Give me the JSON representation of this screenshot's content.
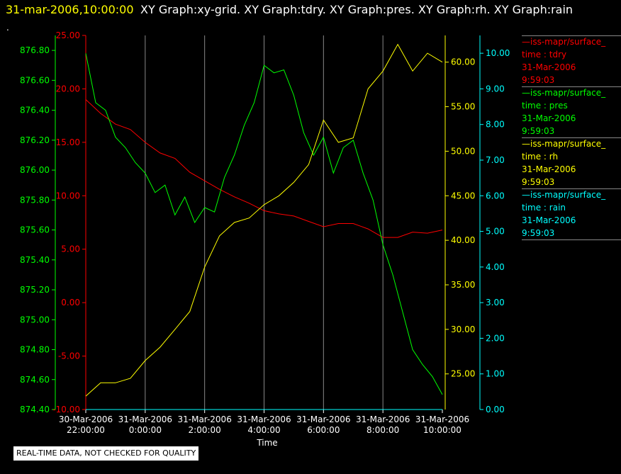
{
  "header": {
    "timestamp": "31-mar-2006,10:00:00",
    "graphs_title": "XY Graph:xy-grid.  XY Graph:tdry.  XY Graph:pres.  XY Graph:rh.  XY Graph:rain",
    "dot": "."
  },
  "disclaimer": "REAL-TIME DATA, NOT CHECKED FOR QUALITY",
  "colors": {
    "tdry": "#ff0000",
    "pres": "#00ff00",
    "rh": "#ffff00",
    "rain": "#00ffff",
    "grid": "#888888"
  },
  "legend": [
    {
      "name": "iss-mapr/surface_",
      "var": "time : tdry",
      "date": "31-Mar-2006",
      "time": "9:59:03",
      "color": "#ff0000"
    },
    {
      "name": "iss-mapr/surface_",
      "var": "time : pres",
      "date": "31-Mar-2006",
      "time": "9:59:03",
      "color": "#00ff00"
    },
    {
      "name": "iss-mapr/surface_",
      "var": "time : rh",
      "date": "31-Mar-2006",
      "time": "9:59:03",
      "color": "#ffff00"
    },
    {
      "name": "iss-mapr/surface_",
      "var": "time : rain",
      "date": "31-Mar-2006",
      "time": "9:59:03",
      "color": "#00ffff"
    }
  ],
  "chart_data": {
    "type": "line",
    "xlabel": "Time",
    "xlim": [
      "30-Mar-2006 22:00:00",
      "31-Mar-2006 10:00:00"
    ],
    "x_ticks": [
      {
        "date": "30-Mar-2006",
        "time": "22:00:00"
      },
      {
        "date": "31-Mar-2006",
        "time": "0:00:00"
      },
      {
        "date": "31-Mar-2006",
        "time": "2:00:00"
      },
      {
        "date": "31-Mar-2006",
        "time": "4:00:00"
      },
      {
        "date": "31-Mar-2006",
        "time": "6:00:00"
      },
      {
        "date": "31-Mar-2006",
        "time": "8:00:00"
      },
      {
        "date": "31-Mar-2006",
        "time": "10:00:00"
      }
    ],
    "grid": "vertical",
    "axes": {
      "pres": {
        "side": "left-outer",
        "ylim": [
          874.4,
          876.9
        ],
        "ticks": [
          "874.40",
          "874.60",
          "874.80",
          "875.00",
          "875.20",
          "875.40",
          "875.60",
          "875.80",
          "876.00",
          "876.20",
          "876.40",
          "876.60",
          "876.80"
        ]
      },
      "tdry": {
        "side": "left-inner",
        "ylim": [
          -10,
          25
        ],
        "ticks": [
          "-10.00",
          "-5.00",
          "0.00",
          "5.00",
          "10.00",
          "15.00",
          "20.00",
          "25.00"
        ]
      },
      "rh": {
        "side": "right-inner",
        "ylim": [
          21,
          63
        ],
        "ticks": [
          "25.00",
          "30.00",
          "35.00",
          "40.00",
          "45.00",
          "50.00",
          "55.00",
          "60.00"
        ]
      },
      "rain": {
        "side": "right-outer",
        "ylim": [
          0,
          10.5
        ],
        "ticks": [
          "0.00",
          "1.00",
          "2.00",
          "3.00",
          "4.00",
          "5.00",
          "6.00",
          "7.00",
          "8.00",
          "9.00",
          "10.00"
        ]
      }
    },
    "series": [
      {
        "name": "tdry",
        "axis": "tdry",
        "x": [
          "30-Mar-2006 22:00",
          "22:30",
          "23:00",
          "23:30",
          "0:00",
          "0:30",
          "1:00",
          "1:30",
          "2:00",
          "2:30",
          "3:00",
          "3:30",
          "4:00",
          "4:30",
          "5:00",
          "5:30",
          "6:00",
          "6:30",
          "7:00",
          "7:30",
          "8:00",
          "8:30",
          "9:00",
          "9:30",
          "10:00"
        ],
        "values": [
          19.0,
          17.7,
          16.7,
          16.2,
          15.0,
          14.0,
          13.5,
          12.2,
          11.4,
          10.6,
          9.9,
          9.3,
          8.6,
          8.3,
          8.1,
          7.6,
          7.1,
          7.4,
          7.4,
          6.9,
          6.1,
          6.1,
          6.6,
          6.5,
          6.8
        ]
      },
      {
        "name": "pres",
        "axis": "pres",
        "x": [
          "30-Mar-2006 22:00",
          "22:20",
          "22:40",
          "23:00",
          "23:20",
          "23:40",
          "0:00",
          "0:20",
          "0:40",
          "1:00",
          "1:20",
          "1:40",
          "2:00",
          "2:20",
          "2:40",
          "3:00",
          "3:20",
          "3:40",
          "4:00",
          "4:20",
          "4:40",
          "5:00",
          "5:20",
          "5:40",
          "6:00",
          "6:20",
          "6:40",
          "7:00",
          "7:20",
          "7:40",
          "8:00",
          "8:20",
          "8:40",
          "9:00",
          "9:20",
          "9:40",
          "10:00"
        ],
        "values": [
          876.78,
          876.45,
          876.4,
          876.22,
          876.15,
          876.05,
          875.98,
          875.85,
          875.9,
          875.7,
          875.82,
          875.65,
          875.75,
          875.72,
          875.95,
          876.1,
          876.3,
          876.45,
          876.7,
          876.65,
          876.67,
          876.5,
          876.25,
          876.1,
          876.22,
          875.98,
          876.15,
          876.2,
          875.98,
          875.8,
          875.5,
          875.3,
          875.05,
          874.8,
          874.7,
          874.62,
          874.5
        ]
      },
      {
        "name": "rh",
        "axis": "rh",
        "x": [
          "30-Mar-2006 22:00",
          "22:30",
          "23:00",
          "23:30",
          "0:00",
          "0:30",
          "1:00",
          "1:30",
          "2:00",
          "2:30",
          "3:00",
          "3:30",
          "4:00",
          "4:30",
          "5:00",
          "5:30",
          "6:00",
          "6:30",
          "7:00",
          "7:30",
          "8:00",
          "8:30",
          "9:00",
          "9:30",
          "10:00"
        ],
        "values": [
          22.5,
          24.0,
          24.0,
          24.5,
          26.5,
          28.0,
          30.0,
          32.0,
          37.0,
          40.5,
          42.0,
          42.5,
          44.0,
          45.0,
          46.5,
          48.5,
          53.5,
          51.0,
          51.5,
          57.0,
          59.0,
          62.0,
          59.0,
          61.0,
          60.0
        ]
      },
      {
        "name": "rain",
        "axis": "rain",
        "x": [
          "30-Mar-2006 22:00",
          "10:00"
        ],
        "values": [
          0.0,
          0.0
        ]
      }
    ]
  }
}
